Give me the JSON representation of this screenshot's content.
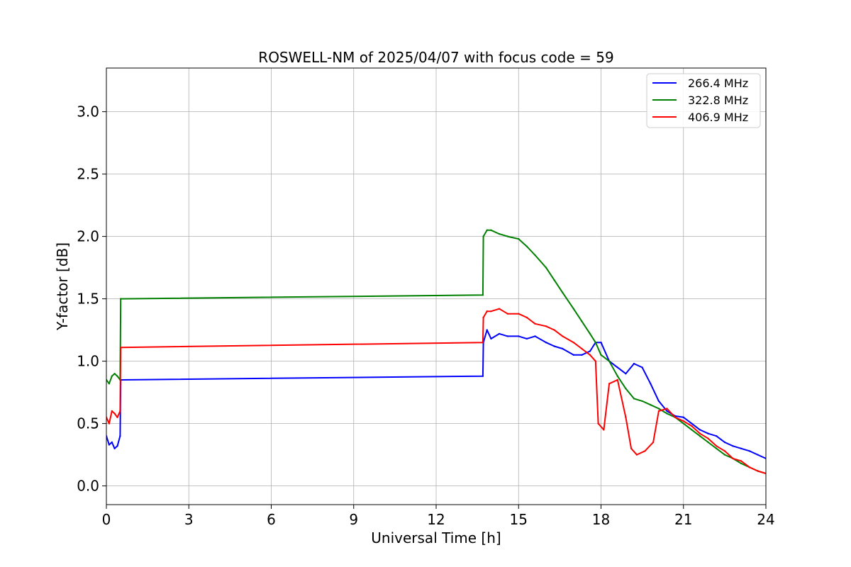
{
  "chart_data": {
    "type": "line",
    "title": "ROSWELL-NM of 2025/04/07 with focus code = 59",
    "xlabel": "Universal Time [h]",
    "ylabel": "Y-factor [dB]",
    "xlim": [
      0,
      24
    ],
    "ylim": [
      -0.15,
      3.35
    ],
    "xticks": [
      0,
      3,
      6,
      9,
      12,
      15,
      18,
      21,
      24
    ],
    "xtick_labels": [
      "0",
      "3",
      "6",
      "9",
      "12",
      "15",
      "18",
      "21",
      "24"
    ],
    "yticks": [
      0.0,
      0.5,
      1.0,
      1.5,
      2.0,
      2.5,
      3.0
    ],
    "ytick_labels": [
      "0.0",
      "0.5",
      "1.0",
      "1.5",
      "2.0",
      "2.5",
      "3.0"
    ],
    "grid": true,
    "legend_position": "top-right",
    "series": [
      {
        "name": "266.4 MHz",
        "color": "#0000ff",
        "x": [
          0.0,
          0.1,
          0.2,
          0.3,
          0.4,
          0.5,
          0.52,
          13.7,
          13.72,
          13.85,
          14.0,
          14.3,
          14.6,
          15.0,
          15.3,
          15.6,
          16.0,
          16.3,
          16.6,
          17.0,
          17.3,
          17.6,
          17.8,
          18.0,
          18.3,
          18.6,
          18.9,
          19.2,
          19.5,
          19.8,
          20.1,
          20.4,
          20.7,
          21.0,
          21.3,
          21.6,
          21.9,
          22.2,
          22.5,
          22.8,
          23.1,
          23.4,
          23.7,
          24.0
        ],
        "y": [
          0.4,
          0.33,
          0.35,
          0.3,
          0.32,
          0.4,
          0.85,
          0.88,
          1.15,
          1.25,
          1.18,
          1.22,
          1.2,
          1.2,
          1.18,
          1.2,
          1.15,
          1.12,
          1.1,
          1.05,
          1.05,
          1.08,
          1.15,
          1.15,
          1.0,
          0.95,
          0.9,
          0.98,
          0.95,
          0.82,
          0.68,
          0.6,
          0.56,
          0.55,
          0.5,
          0.45,
          0.42,
          0.4,
          0.35,
          0.32,
          0.3,
          0.28,
          0.25,
          0.22
        ]
      },
      {
        "name": "322.8 MHz",
        "color": "#008000",
        "x": [
          0.0,
          0.1,
          0.2,
          0.3,
          0.4,
          0.5,
          0.52,
          13.7,
          13.72,
          13.85,
          14.0,
          14.3,
          14.6,
          15.0,
          15.3,
          15.6,
          16.0,
          16.3,
          16.6,
          17.0,
          17.3,
          17.6,
          17.8,
          18.0,
          18.3,
          18.6,
          18.9,
          19.2,
          19.5,
          19.8,
          20.1,
          20.4,
          20.7,
          21.0,
          21.3,
          21.6,
          21.9,
          22.2,
          22.5,
          22.8,
          23.1,
          23.4,
          23.7,
          24.0
        ],
        "y": [
          0.85,
          0.82,
          0.88,
          0.9,
          0.88,
          0.85,
          1.5,
          1.53,
          2.0,
          2.05,
          2.05,
          2.02,
          2.0,
          1.98,
          1.92,
          1.85,
          1.75,
          1.65,
          1.55,
          1.42,
          1.32,
          1.22,
          1.15,
          1.05,
          1.0,
          0.88,
          0.78,
          0.7,
          0.68,
          0.65,
          0.62,
          0.58,
          0.55,
          0.5,
          0.45,
          0.4,
          0.35,
          0.3,
          0.25,
          0.22,
          0.18,
          0.15,
          0.12,
          0.1
        ]
      },
      {
        "name": "406.9 MHz",
        "color": "#ff0000",
        "x": [
          0.0,
          0.1,
          0.2,
          0.3,
          0.4,
          0.5,
          0.52,
          13.7,
          13.72,
          13.85,
          14.0,
          14.3,
          14.6,
          15.0,
          15.3,
          15.6,
          16.0,
          16.3,
          16.6,
          17.0,
          17.3,
          17.6,
          17.8,
          17.9,
          18.1,
          18.3,
          18.6,
          18.9,
          19.1,
          19.3,
          19.6,
          19.9,
          20.1,
          20.4,
          20.7,
          21.0,
          21.3,
          21.6,
          21.9,
          22.2,
          22.5,
          22.8,
          23.1,
          23.4,
          23.7,
          24.0
        ],
        "y": [
          0.55,
          0.5,
          0.6,
          0.58,
          0.55,
          0.6,
          1.11,
          1.15,
          1.35,
          1.4,
          1.4,
          1.42,
          1.38,
          1.38,
          1.35,
          1.3,
          1.28,
          1.25,
          1.2,
          1.15,
          1.1,
          1.05,
          1.0,
          0.5,
          0.45,
          0.82,
          0.85,
          0.55,
          0.3,
          0.25,
          0.28,
          0.35,
          0.6,
          0.62,
          0.55,
          0.52,
          0.48,
          0.42,
          0.38,
          0.32,
          0.28,
          0.22,
          0.2,
          0.15,
          0.12,
          0.1
        ]
      }
    ]
  }
}
